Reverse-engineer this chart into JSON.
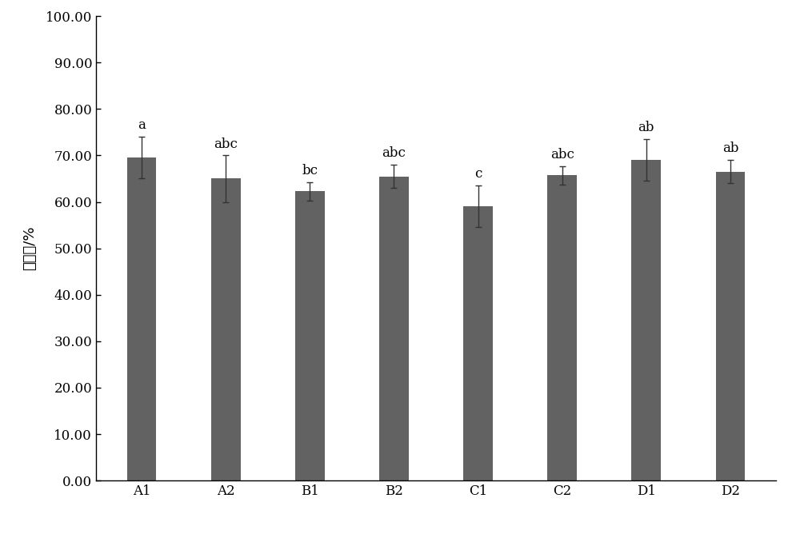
{
  "categories": [
    "A1",
    "A2",
    "B1",
    "B2",
    "C1",
    "C2",
    "D1",
    "D2"
  ],
  "values": [
    69.5,
    65.0,
    62.3,
    65.5,
    59.0,
    65.7,
    69.0,
    66.5
  ],
  "errors": [
    4.5,
    5.0,
    2.0,
    2.5,
    4.5,
    2.0,
    4.5,
    2.5
  ],
  "bar_color": "#626262",
  "labels": [
    "a",
    "abc",
    "bc",
    "abc",
    "c",
    "abc",
    "ab",
    "ab"
  ],
  "ylabel": "可食率/%",
  "ylim": [
    0,
    100
  ],
  "yticks": [
    0.0,
    10.0,
    20.0,
    30.0,
    40.0,
    50.0,
    60.0,
    70.0,
    80.0,
    90.0,
    100.0
  ],
  "background_color": "#ffffff",
  "bar_width": 0.35,
  "label_fontsize": 12,
  "tick_fontsize": 12,
  "ylabel_fontsize": 13
}
